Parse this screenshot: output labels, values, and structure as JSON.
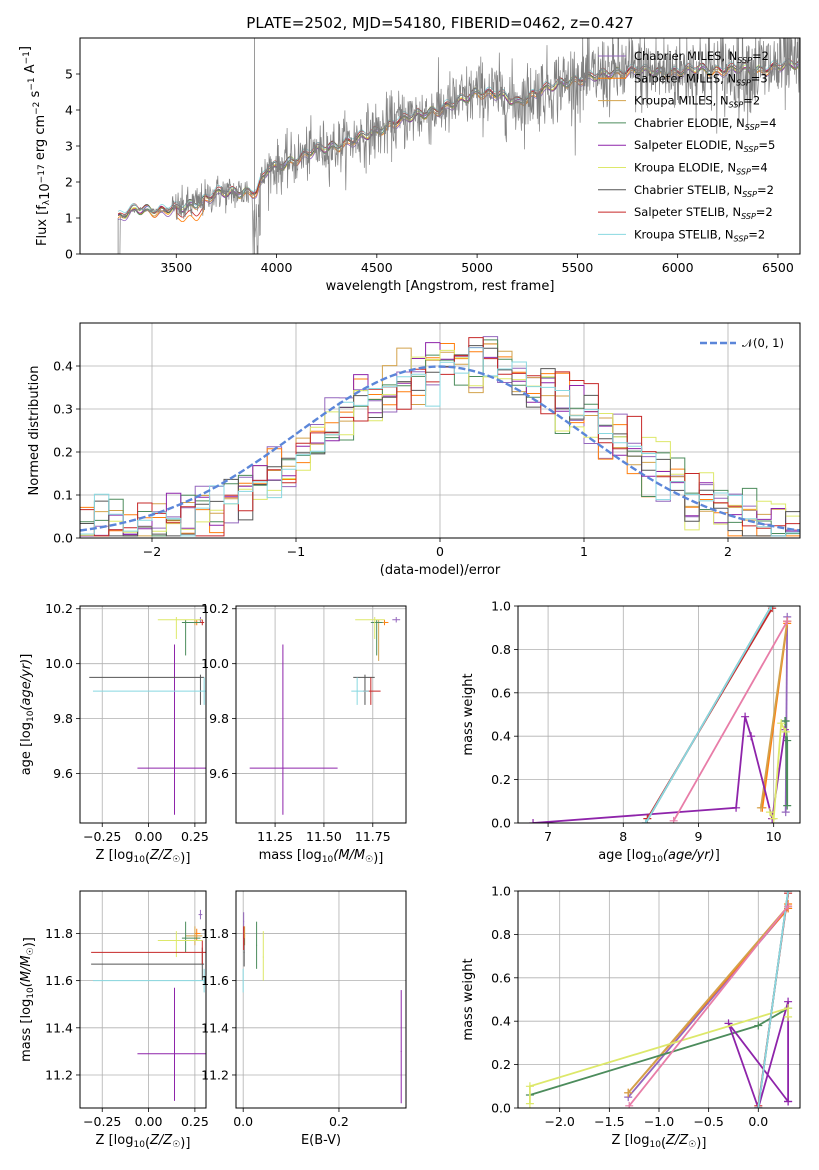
{
  "title": "PLATE=2502, MJD=54180, FIBERID=0462, z=0.427",
  "colors": {
    "Chabrier MILES": "#9467bd",
    "Salpeter MILES": "#ff7f0e",
    "Kroupa MILES": "#d2a24c",
    "Chabrier ELODIE": "#4c8c5c",
    "Salpeter ELODIE": "#8e24aa",
    "Kroupa ELODIE": "#dde86a",
    "Chabrier STELIB": "#555555",
    "Salpeter STELIB": "#c62828",
    "Kroupa STELIB": "#88d8e0",
    "data": "#808080",
    "normal": "#5b86d9"
  },
  "legend": [
    {
      "name": "Chabrier MILES",
      "prefix": "Chabrier MILES, N",
      "sub": "SSP",
      "suffix": "=2"
    },
    {
      "name": "Salpeter MILES",
      "prefix": "Salpeter MILES, N",
      "sub": "SSP",
      "suffix": "=3"
    },
    {
      "name": "Kroupa MILES",
      "prefix": "Kroupa MILES, N",
      "sub": "SSP",
      "suffix": "=2"
    },
    {
      "name": "Chabrier ELODIE",
      "prefix": "Chabrier ELODIE, N",
      "sub": "SSP",
      "suffix": "=4"
    },
    {
      "name": "Salpeter ELODIE",
      "prefix": "Salpeter ELODIE, N",
      "sub": "SSP",
      "suffix": "=5"
    },
    {
      "name": "Kroupa ELODIE",
      "prefix": "Kroupa ELODIE, N",
      "sub": "SSP",
      "suffix": "=4"
    },
    {
      "name": "Chabrier STELIB",
      "prefix": "Chabrier STELIB, N",
      "sub": "SSP",
      "suffix": "=2"
    },
    {
      "name": "Salpeter STELIB",
      "prefix": "Salpeter STELIB, N",
      "sub": "SSP",
      "suffix": "=2"
    },
    {
      "name": "Kroupa STELIB",
      "prefix": "Kroupa STELIB, N",
      "sub": "SSP",
      "suffix": "=2"
    }
  ],
  "chart_data": [
    {
      "type": "line",
      "id": "spectrum",
      "xlabel": "wavelength [Angstrom, rest frame]",
      "ylabel": "Flux [fλ 10⁻¹⁷ erg cm⁻² s⁻¹ A⁻¹]",
      "xlim": [
        3020,
        6610
      ],
      "ylim": [
        0,
        6.0
      ],
      "xticks": [
        3500,
        4000,
        4500,
        5000,
        5500,
        6000,
        6500
      ],
      "yticks": [
        0,
        1,
        2,
        3,
        4,
        5
      ],
      "grid": false,
      "legend_position": "right",
      "wavelength_range": [
        3210,
        6610
      ],
      "continuum": {
        "x": [
          3210,
          3300,
          3400,
          3500,
          3600,
          3700,
          3800,
          3900,
          3960,
          4000,
          4100,
          4200,
          4300,
          4400,
          4500,
          4600,
          4700,
          4800,
          4900,
          5000,
          5100,
          5200,
          5300,
          5400,
          5500,
          5600,
          5700,
          5800,
          5900,
          6000,
          6100,
          6200,
          6300,
          6400,
          6500,
          6610
        ],
        "y": [
          1.0,
          1.25,
          1.2,
          1.25,
          1.4,
          1.7,
          1.7,
          1.75,
          2.4,
          2.4,
          2.65,
          2.9,
          3.0,
          3.2,
          3.4,
          3.7,
          3.85,
          4.0,
          4.2,
          4.5,
          4.45,
          4.2,
          4.5,
          4.7,
          4.85,
          4.95,
          5.05,
          5.1,
          5.05,
          5.05,
          5.15,
          5.1,
          5.15,
          5.1,
          5.2,
          5.3
        ]
      },
      "series": [
        "Chabrier MILES",
        "Salpeter MILES",
        "Kroupa MILES",
        "Chabrier ELODIE",
        "Salpeter ELODIE",
        "Kroupa ELODIE",
        "Chabrier STELIB",
        "Salpeter STELIB",
        "Kroupa STELIB"
      ]
    },
    {
      "type": "histogram",
      "id": "residuals",
      "xlabel": "(data-model)/error",
      "ylabel": "Normed distribution",
      "xlim": [
        -2.5,
        2.5
      ],
      "ylim": [
        0,
        0.5
      ],
      "xticks": [
        -2,
        -1,
        0,
        1,
        2
      ],
      "yticks": [
        0.0,
        0.1,
        0.2,
        0.3,
        0.4
      ],
      "grid": true,
      "bin_width": 0.1,
      "reference_curve": {
        "name": "𝒩(0, 1)",
        "type": "normal",
        "mean": 0,
        "sigma": 1
      },
      "legend_position": "top-right"
    },
    {
      "type": "errorbar",
      "id": "age-vs-Z",
      "xlabel": "Z [log10(Z/Z☉)]",
      "ylabel": "age  [log10(age/yr)]",
      "xlim": [
        -0.37,
        0.31
      ],
      "ylim": [
        9.42,
        10.21
      ],
      "xticks": [
        -0.25,
        0.0,
        0.25
      ],
      "yticks": [
        9.6,
        9.8,
        10.0,
        10.2
      ],
      "grid": true,
      "points": [
        {
          "series": "Chabrier MILES",
          "x": 0.28,
          "y": 10.16,
          "xerr": [
            0.01,
            0.01
          ],
          "yerr": [
            0.01,
            0.01
          ]
        },
        {
          "series": "Salpeter MILES",
          "x": 0.26,
          "y": 10.15,
          "xerr": [
            0.0,
            0.02
          ],
          "yerr": [
            0.01,
            0.01
          ]
        },
        {
          "series": "Kroupa MILES",
          "x": 0.25,
          "y": 10.15,
          "xerr": [
            0.05,
            0.04
          ],
          "yerr": [
            0.01,
            0.01
          ]
        },
        {
          "series": "Chabrier ELODIE",
          "x": 0.2,
          "y": 10.15,
          "xerr": [
            0.02,
            0.08
          ],
          "yerr": [
            0.12,
            0.01
          ]
        },
        {
          "series": "Salpeter ELODIE",
          "x": 0.14,
          "y": 9.62,
          "xerr": [
            0.2,
            0.17
          ],
          "yerr": [
            0.17,
            0.45
          ]
        },
        {
          "series": "Kroupa ELODIE",
          "x": 0.15,
          "y": 10.16,
          "xerr": [
            0.1,
            0.14
          ],
          "yerr": [
            0.07,
            0.01
          ]
        },
        {
          "series": "Chabrier STELIB",
          "x": 0.28,
          "y": 9.95,
          "xerr": [
            0.6,
            0.02
          ],
          "yerr": [
            0.1,
            0.01
          ]
        },
        {
          "series": "Salpeter STELIB",
          "x": 0.29,
          "y": 10.15,
          "xerr": [
            0.01,
            0.01
          ],
          "yerr": [
            0.01,
            0.01
          ]
        },
        {
          "series": "Kroupa STELIB",
          "x": 0.3,
          "y": 9.9,
          "xerr": [
            0.6,
            0.01
          ],
          "yerr": [
            0.05,
            0.05
          ]
        }
      ]
    },
    {
      "type": "errorbar",
      "id": "age-vs-mass",
      "xlabel": "mass [log10(M/M☉)]",
      "ylabel": "",
      "xlim": [
        11.05,
        11.92
      ],
      "ylim": [
        9.42,
        10.21
      ],
      "xticks": [
        11.25,
        11.5,
        11.75
      ],
      "yticks": [
        9.6,
        9.8,
        10.0,
        10.2
      ],
      "grid": true,
      "points": [
        {
          "series": "Chabrier MILES",
          "x": 11.87,
          "y": 10.16,
          "xerr": [
            0.02,
            0.02
          ],
          "yerr": [
            0.01,
            0.01
          ]
        },
        {
          "series": "Salpeter MILES",
          "x": 11.81,
          "y": 10.15,
          "xerr": [
            0.03,
            0.02
          ],
          "yerr": [
            0.01,
            0.01
          ]
        },
        {
          "series": "Kroupa MILES",
          "x": 11.78,
          "y": 10.15,
          "xerr": [
            0.03,
            0.03
          ],
          "yerr": [
            0.14,
            0.01
          ]
        },
        {
          "series": "Chabrier ELODIE",
          "x": 11.77,
          "y": 10.15,
          "xerr": [
            0.03,
            0.03
          ],
          "yerr": [
            0.12,
            0.01
          ]
        },
        {
          "series": "Salpeter ELODIE",
          "x": 11.29,
          "y": 9.62,
          "xerr": [
            0.17,
            0.28
          ],
          "yerr": [
            0.17,
            0.45
          ]
        },
        {
          "series": "Kroupa ELODIE",
          "x": 11.76,
          "y": 10.16,
          "xerr": [
            0.1,
            0.05
          ],
          "yerr": [
            0.07,
            0.01
          ]
        },
        {
          "series": "Chabrier STELIB",
          "x": 11.71,
          "y": 9.95,
          "xerr": [
            0.06,
            0.05
          ],
          "yerr": [
            0.1,
            0.01
          ]
        },
        {
          "series": "Salpeter STELIB",
          "x": 11.74,
          "y": 9.9,
          "xerr": [
            0.04,
            0.05
          ],
          "yerr": [
            0.05,
            0.05
          ]
        },
        {
          "series": "Kroupa STELIB",
          "x": 11.67,
          "y": 9.9,
          "xerr": [
            0.03,
            0.06
          ],
          "yerr": [
            0.05,
            0.05
          ]
        }
      ]
    },
    {
      "type": "line",
      "id": "mass-weight-vs-age",
      "xlabel": "age  [log10(age/yr)]",
      "ylabel": "mass weight",
      "xlim": [
        6.6,
        10.35
      ],
      "ylim": [
        0,
        1
      ],
      "xticks": [
        7,
        8,
        9,
        10
      ],
      "yticks": [
        0.0,
        0.2,
        0.4,
        0.6,
        0.8,
        1.0
      ],
      "grid": true,
      "series": [
        {
          "name": "Chabrier MILES",
          "x": [
            10.16,
            10.18
          ],
          "y": [
            0.05,
            0.95
          ]
        },
        {
          "name": "Salpeter MILES",
          "x": [
            9.85,
            10.18,
            10.18
          ],
          "y": [
            0.07,
            0.92,
            0.93
          ]
        },
        {
          "name": "Kroupa MILES",
          "x": [
            9.83,
            10.18
          ],
          "y": [
            0.07,
            0.93
          ]
        },
        {
          "name": "Chabrier ELODIE",
          "x": [
            10.15,
            10.18,
            10.18,
            10.16
          ],
          "y": [
            0.47,
            0.38,
            0.08,
            0.47
          ]
        },
        {
          "name": "Salpeter ELODIE",
          "x": [
            6.8,
            9.5,
            9.62,
            9.7,
            9.98,
            10.15
          ],
          "y": [
            0.0,
            0.07,
            0.49,
            0.4,
            0.02,
            0.43
          ]
        },
        {
          "name": "Kroupa ELODIE",
          "x": [
            9.95,
            10.0,
            10.1,
            10.16
          ],
          "y": [
            0.05,
            0.02,
            0.46,
            0.42
          ]
        },
        {
          "name": "Chabrier STELIB",
          "x": [
            8.3,
            9.97
          ],
          "y": [
            0.0,
            1.0
          ]
        },
        {
          "name": "Salpeter STELIB",
          "x": [
            8.32,
            9.98
          ],
          "y": [
            0.02,
            0.99
          ]
        },
        {
          "name": "Kroupa STELIB",
          "x": [
            8.3,
            9.97
          ],
          "y": [
            0.0,
            1.0
          ]
        },
        {
          "name": "Pink",
          "color": "#e87da8",
          "x": [
            8.67,
            10.18
          ],
          "y": [
            0.01,
            0.93
          ]
        }
      ]
    },
    {
      "type": "errorbar",
      "id": "mass-vs-Z",
      "xlabel": "Z [log10(Z/Z☉)]",
      "ylabel": "mass [log10(M/M☉)]",
      "xlim": [
        -0.37,
        0.31
      ],
      "ylim": [
        11.06,
        11.98
      ],
      "xticks": [
        -0.25,
        0.0,
        0.25
      ],
      "yticks": [
        11.2,
        11.4,
        11.6,
        11.8
      ],
      "grid": true,
      "points": [
        {
          "series": "Chabrier MILES",
          "x": 0.28,
          "y": 11.88,
          "xerr": [
            0.01,
            0.01
          ],
          "yerr": [
            0.02,
            0.02
          ]
        },
        {
          "series": "Salpeter MILES",
          "x": 0.26,
          "y": 11.8,
          "xerr": [
            0.01,
            0.02
          ],
          "yerr": [
            0.03,
            0.02
          ]
        },
        {
          "series": "Kroupa MILES",
          "x": 0.25,
          "y": 11.79,
          "xerr": [
            0.05,
            0.04
          ],
          "yerr": [
            0.04,
            0.04
          ]
        },
        {
          "series": "Chabrier ELODIE",
          "x": 0.2,
          "y": 11.78,
          "xerr": [
            0.02,
            0.08
          ],
          "yerr": [
            0.06,
            0.07
          ]
        },
        {
          "series": "Salpeter ELODIE",
          "x": 0.14,
          "y": 11.29,
          "xerr": [
            0.2,
            0.17
          ],
          "yerr": [
            0.2,
            0.28
          ]
        },
        {
          "series": "Kroupa ELODIE",
          "x": 0.15,
          "y": 11.77,
          "xerr": [
            0.1,
            0.14
          ],
          "yerr": [
            0.07,
            0.04
          ]
        },
        {
          "series": "Chabrier STELIB",
          "x": 0.29,
          "y": 11.67,
          "xerr": [
            0.6,
            0.01
          ],
          "yerr": [
            0.07,
            0.07
          ]
        },
        {
          "series": "Salpeter STELIB",
          "x": 0.29,
          "y": 11.72,
          "xerr": [
            0.6,
            0.02
          ],
          "yerr": [
            0.05,
            0.05
          ]
        },
        {
          "series": "Kroupa STELIB",
          "x": 0.3,
          "y": 11.6,
          "xerr": [
            0.6,
            0.01
          ],
          "yerr": [
            0.05,
            0.05
          ]
        }
      ]
    },
    {
      "type": "errorbar",
      "id": "mass-vs-ebv",
      "xlabel": "E(B-V)",
      "ylabel": "",
      "xlim": [
        -0.015,
        0.34
      ],
      "ylim": [
        11.06,
        11.98
      ],
      "xticks": [
        0.0,
        0.2
      ],
      "yticks": [
        11.2,
        11.4,
        11.6,
        11.8
      ],
      "grid": true,
      "points": [
        {
          "series": "Chabrier MILES",
          "x": 0.001,
          "y": 11.85,
          "xerr": [
            0.001,
            0.001
          ],
          "yerr": [
            0.04,
            0.04
          ]
        },
        {
          "series": "Salpeter MILES",
          "x": 0.002,
          "y": 11.8,
          "xerr": [
            0.001,
            0.001
          ],
          "yerr": [
            0.03,
            0.03
          ]
        },
        {
          "series": "Kroupa MILES",
          "x": 0.003,
          "y": 11.79,
          "xerr": [
            0.001,
            0.001
          ],
          "yerr": [
            0.04,
            0.04
          ]
        },
        {
          "series": "Chabrier ELODIE",
          "x": 0.028,
          "y": 11.75,
          "xerr": [
            0.001,
            0.001
          ],
          "yerr": [
            0.1,
            0.1
          ]
        },
        {
          "series": "Salpeter ELODIE",
          "x": 0.33,
          "y": 11.3,
          "xerr": [
            0.001,
            0.001
          ],
          "yerr": [
            0.22,
            0.26
          ]
        },
        {
          "series": "Kroupa ELODIE",
          "x": 0.042,
          "y": 11.7,
          "xerr": [
            0.001,
            0.001
          ],
          "yerr": [
            0.1,
            0.11
          ]
        },
        {
          "series": "Chabrier STELIB",
          "x": 0.002,
          "y": 11.72,
          "xerr": [
            0.001,
            0.001
          ],
          "yerr": [
            0.06,
            0.06
          ]
        },
        {
          "series": "Salpeter STELIB",
          "x": 0.001,
          "y": 11.78,
          "xerr": [
            0.001,
            0.001
          ],
          "yerr": [
            0.05,
            0.05
          ]
        },
        {
          "series": "Kroupa STELIB",
          "x": 0.0,
          "y": 11.6,
          "xerr": [
            0.001,
            0.001
          ],
          "yerr": [
            0.05,
            0.05
          ]
        }
      ]
    },
    {
      "type": "line",
      "id": "mass-weight-vs-Z",
      "xlabel": "Z [log10(Z/Z☉)]",
      "ylabel": "mass weight",
      "xlim": [
        -2.42,
        0.42
      ],
      "ylim": [
        0,
        1
      ],
      "xticks": [
        -2.0,
        -1.5,
        -1.0,
        -0.5,
        0.0
      ],
      "yticks": [
        0.0,
        0.2,
        0.4,
        0.6,
        0.8,
        1.0
      ],
      "grid": true,
      "series": [
        {
          "name": "Chabrier MILES",
          "x": [
            -1.31,
            0.3
          ],
          "y": [
            0.05,
            0.92
          ]
        },
        {
          "name": "Salpeter MILES",
          "x": [
            -1.31,
            0.3,
            0.3
          ],
          "y": [
            0.07,
            0.92,
            0.94
          ]
        },
        {
          "name": "Kroupa MILES",
          "x": [
            -1.31,
            0.3
          ],
          "y": [
            0.07,
            0.93
          ]
        },
        {
          "name": "Chabrier ELODIE",
          "x": [
            -2.3,
            0.0,
            0.3
          ],
          "y": [
            0.06,
            0.38,
            0.46
          ]
        },
        {
          "name": "Salpeter ELODIE",
          "x": [
            0.3,
            0.3,
            0.0,
            -0.3,
            0.3
          ],
          "y": [
            0.03,
            0.49,
            0.0,
            0.39,
            0.03
          ]
        },
        {
          "name": "Kroupa ELODIE",
          "x": [
            -2.3,
            -2.3,
            0.3,
            0.3
          ],
          "y": [
            0.02,
            0.1,
            0.46,
            0.42
          ]
        },
        {
          "name": "Chabrier STELIB",
          "x": [
            0.0,
            0.3
          ],
          "y": [
            0.0,
            1.0
          ]
        },
        {
          "name": "Salpeter STELIB",
          "x": [
            0.0,
            0.3
          ],
          "y": [
            0.01,
            0.99
          ]
        },
        {
          "name": "Kroupa STELIB",
          "x": [
            0.0,
            0.3
          ],
          "y": [
            0.0,
            1.0
          ]
        },
        {
          "name": "Pink",
          "color": "#e87da8",
          "x": [
            -1.3,
            0.3
          ],
          "y": [
            0.01,
            0.93
          ]
        }
      ]
    }
  ]
}
